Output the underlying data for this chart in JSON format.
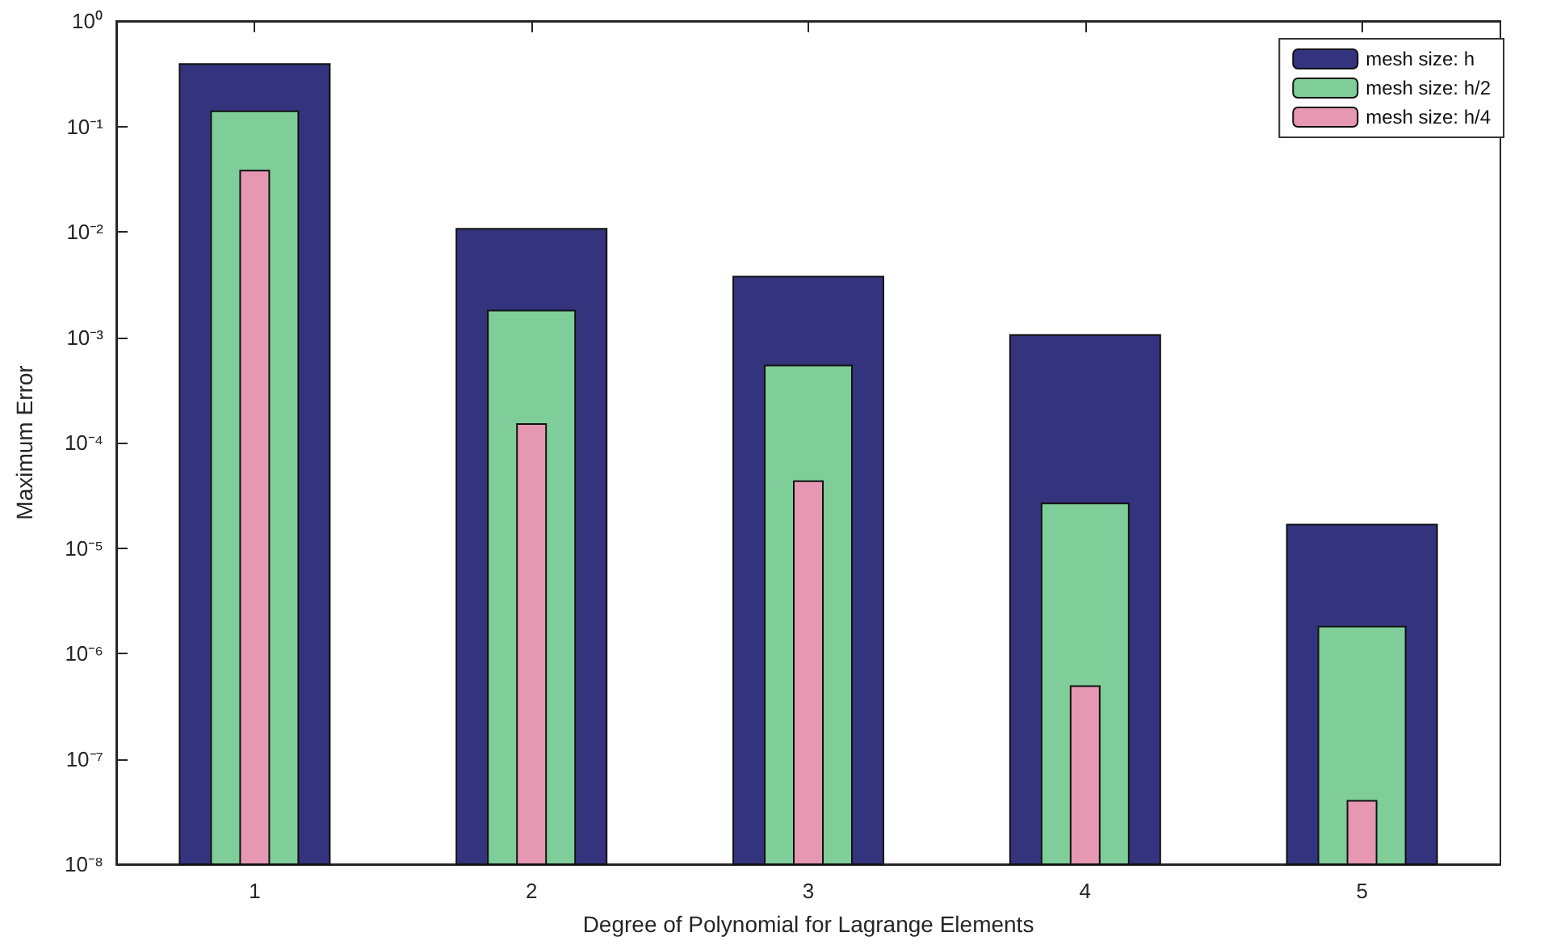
{
  "chart_data": {
    "type": "bar",
    "xlabel": "Degree of Polynomial for Lagrange Elements",
    "ylabel": "Maximum Error",
    "categories": [
      "1",
      "2",
      "3",
      "4",
      "5"
    ],
    "series": [
      {
        "name": "mesh size: h",
        "color": "#34347e",
        "values": [
          0.39,
          0.0107,
          0.00375,
          0.00105,
          1.67e-05
        ]
      },
      {
        "name": "mesh size: h/2",
        "color": "#7fcd98",
        "values": [
          0.139,
          0.00179,
          0.00054,
          2.65e-05,
          1.8e-06
        ]
      },
      {
        "name": "mesh size: h/4",
        "color": "#e698b3",
        "values": [
          0.038,
          0.00015,
          4.3e-05,
          4.9e-07,
          4e-08
        ]
      }
    ],
    "log": "y",
    "ylim": [
      1e-08,
      1
    ],
    "yticks": [
      {
        "value": 1e-08,
        "label": "10⁻⁸"
      },
      {
        "value": 1e-07,
        "label": "10⁻⁷"
      },
      {
        "value": 1e-06,
        "label": "10⁻⁶"
      },
      {
        "value": 1e-05,
        "label": "10⁻⁵"
      },
      {
        "value": 0.0001,
        "label": "10⁻⁴"
      },
      {
        "value": 0.001,
        "label": "10⁻³"
      },
      {
        "value": 0.01,
        "label": "10⁻²"
      },
      {
        "value": 0.1,
        "label": "10⁻¹"
      },
      {
        "value": 1,
        "label": "10⁰"
      }
    ],
    "grid": false,
    "legend": "top right"
  }
}
